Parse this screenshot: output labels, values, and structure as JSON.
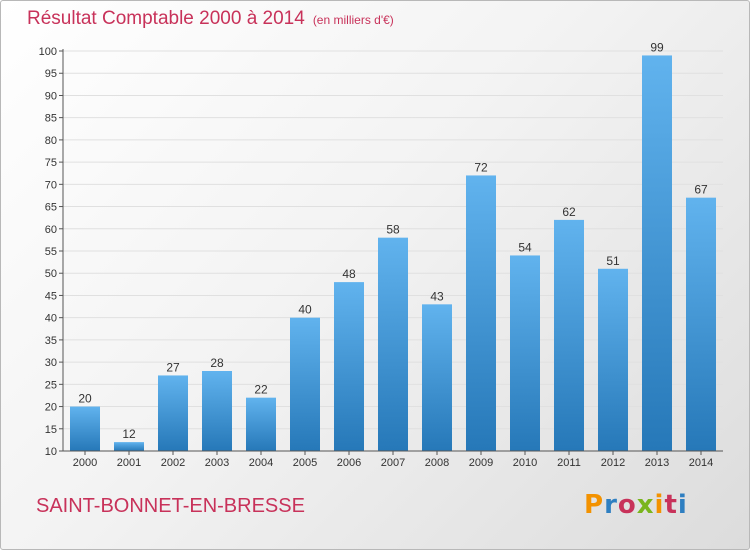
{
  "header": {
    "title": "Résultat Comptable 2000 à 2014",
    "subtitle": "(en milliers d'€)"
  },
  "footer": {
    "town": "SAINT-BONNET-EN-BRESSE",
    "logo_text": "Proxiti",
    "logo_colors": [
      "#f39200",
      "#2e7fc1",
      "#c8325a",
      "#7ab51d",
      "#f39200",
      "#c8325a",
      "#2e7fc1"
    ]
  },
  "colors": {
    "bar_light": "#61b3ee",
    "bar_dark": "#2678b8",
    "title": "#c8325a",
    "grid": "#e0e0e0"
  },
  "chart_data": {
    "type": "bar",
    "title": "Résultat Comptable 2000 à 2014",
    "subtitle": "(en milliers d'€)",
    "categories": [
      "2000",
      "2001",
      "2002",
      "2003",
      "2004",
      "2005",
      "2006",
      "2007",
      "2008",
      "2009",
      "2010",
      "2011",
      "2012",
      "2013",
      "2014"
    ],
    "values": [
      20,
      12,
      27,
      28,
      22,
      40,
      48,
      58,
      43,
      72,
      54,
      62,
      51,
      99,
      67
    ],
    "ylim": [
      10,
      100
    ],
    "yticks": [
      10,
      15,
      20,
      25,
      30,
      35,
      40,
      45,
      50,
      55,
      60,
      65,
      70,
      75,
      80,
      85,
      90,
      95,
      100
    ],
    "grid": true,
    "data_labels": true
  }
}
